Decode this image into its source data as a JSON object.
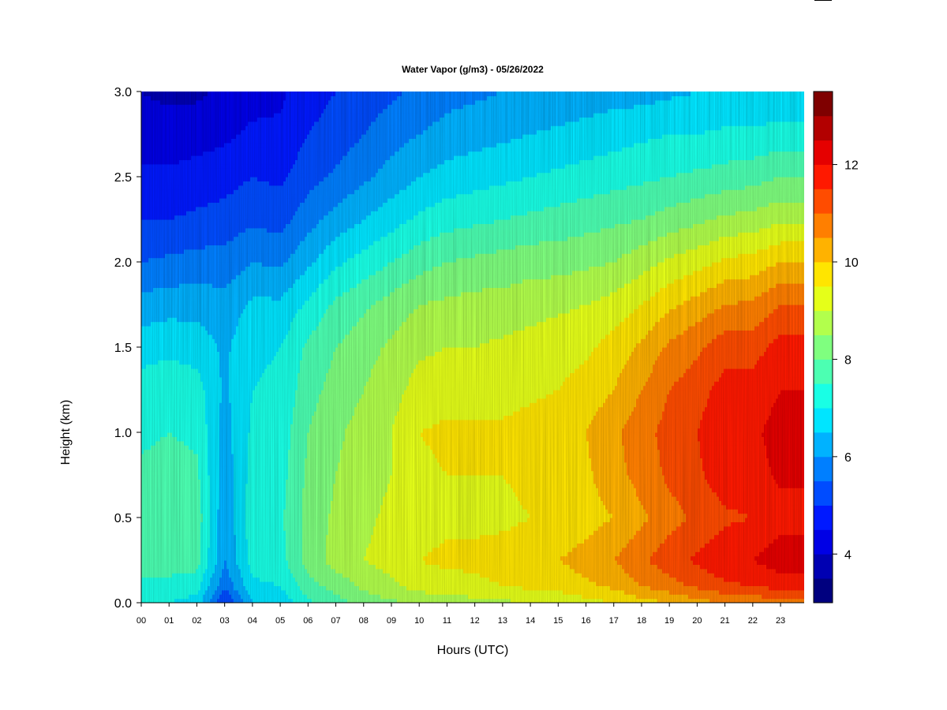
{
  "chart_data": {
    "type": "heatmap",
    "title": "Water Vapor (g/m3) - 05/26/2022",
    "xlabel": "Hours (UTC)",
    "ylabel": "Height (km)",
    "x_ticks": [
      "00",
      "01",
      "02",
      "03",
      "04",
      "05",
      "06",
      "07",
      "08",
      "09",
      "10",
      "11",
      "12",
      "13",
      "14",
      "15",
      "16",
      "17",
      "18",
      "19",
      "20",
      "21",
      "22",
      "23"
    ],
    "xlim": [
      0,
      23.85
    ],
    "y_ticks": [
      "0.0",
      "0.5",
      "1.0",
      "1.5",
      "2.0",
      "2.5",
      "3.0"
    ],
    "ylim": [
      0,
      3.0
    ],
    "colorbar": {
      "ticks": [
        "4",
        "6",
        "8",
        "10",
        "12"
      ],
      "range": [
        3,
        13.5
      ],
      "levels": 21,
      "colors": [
        "#00007f",
        "#0000b2",
        "#0000e5",
        "#0019ff",
        "#004cff",
        "#007fff",
        "#00b2ff",
        "#00e5ff",
        "#19ffe5",
        "#4cffb2",
        "#7fff7f",
        "#b2ff4c",
        "#e5ff19",
        "#ffe500",
        "#ffb200",
        "#ff7f00",
        "#ff4c00",
        "#ff1900",
        "#e50000",
        "#b20000",
        "#7f0000"
      ]
    },
    "heights_km": [
      0.0,
      0.1,
      0.25,
      0.5,
      0.75,
      1.0,
      1.25,
      1.5,
      1.75,
      2.0,
      2.25,
      2.5,
      2.75,
      3.0
    ],
    "hours": [
      0,
      1,
      2,
      3,
      4,
      5,
      6,
      7,
      8,
      9,
      10,
      11,
      12,
      13,
      14,
      15,
      16,
      17,
      18,
      19,
      20,
      21,
      22,
      23
    ],
    "values_g_m3": [
      [
        7.2,
        7.4,
        7.8,
        7.8,
        7.6,
        7.4,
        7.2,
        6.8,
        6.2,
        5.5,
        5.0,
        4.6,
        4.2,
        4.0
      ],
      [
        7.0,
        7.3,
        7.8,
        7.9,
        7.7,
        7.5,
        7.3,
        6.9,
        6.3,
        5.6,
        5.0,
        4.6,
        4.2,
        3.9
      ],
      [
        6.8,
        7.2,
        7.7,
        7.8,
        7.6,
        7.4,
        7.2,
        6.8,
        6.3,
        5.7,
        5.1,
        4.7,
        4.3,
        3.9
      ],
      [
        4.9,
        5.6,
        6.0,
        6.1,
        6.2,
        6.3,
        6.4,
        6.4,
        6.2,
        5.7,
        5.2,
        4.8,
        4.4,
        4.1
      ],
      [
        6.5,
        6.9,
        7.2,
        7.3,
        7.2,
        7.1,
        7.0,
        6.9,
        6.6,
        6.0,
        5.4,
        5.0,
        4.6,
        4.3
      ],
      [
        6.6,
        7.0,
        7.3,
        7.4,
        7.3,
        7.2,
        7.1,
        7.0,
        6.6,
        5.9,
        5.3,
        4.9,
        4.6,
        4.4
      ],
      [
        7.4,
        7.8,
        8.2,
        8.2,
        8.1,
        8.0,
        7.8,
        7.6,
        7.1,
        6.4,
        5.8,
        5.3,
        5.0,
        4.8
      ],
      [
        7.8,
        8.2,
        8.7,
        8.6,
        8.5,
        8.4,
        8.2,
        8.0,
        7.6,
        6.9,
        6.2,
        5.6,
        5.2,
        5.0
      ],
      [
        8.2,
        8.6,
        9.0,
        8.9,
        8.8,
        8.7,
        8.5,
        8.3,
        7.9,
        7.2,
        6.5,
        5.9,
        5.5,
        5.2
      ],
      [
        8.4,
        8.9,
        9.2,
        9.1,
        9.0,
        9.0,
        8.8,
        8.6,
        8.2,
        7.5,
        6.8,
        6.2,
        5.8,
        5.4
      ],
      [
        8.6,
        9.2,
        9.5,
        9.3,
        9.4,
        9.5,
        9.2,
        8.9,
        8.5,
        7.8,
        7.1,
        6.5,
        6.0,
        5.6
      ],
      [
        8.7,
        9.3,
        9.6,
        9.4,
        9.5,
        9.6,
        9.3,
        9.0,
        8.6,
        8.0,
        7.3,
        6.7,
        6.2,
        5.8
      ],
      [
        8.8,
        9.4,
        9.6,
        9.4,
        9.5,
        9.6,
        9.3,
        9.0,
        8.7,
        8.1,
        7.4,
        6.8,
        6.3,
        5.9
      ],
      [
        8.9,
        9.5,
        9.7,
        9.4,
        9.5,
        9.6,
        9.3,
        9.1,
        8.7,
        8.2,
        7.5,
        6.9,
        6.4,
        6.0
      ],
      [
        9.0,
        9.6,
        9.8,
        9.5,
        9.6,
        9.7,
        9.4,
        9.2,
        8.8,
        8.3,
        7.6,
        7.0,
        6.5,
        6.0
      ],
      [
        9.1,
        9.7,
        10.0,
        9.6,
        9.7,
        9.8,
        9.5,
        9.3,
        8.9,
        8.3,
        7.7,
        7.1,
        6.6,
        6.1
      ],
      [
        9.3,
        9.9,
        10.2,
        9.8,
        9.9,
        10.0,
        9.7,
        9.4,
        9.0,
        8.4,
        7.8,
        7.2,
        6.7,
        6.2
      ],
      [
        9.5,
        10.1,
        10.5,
        10.0,
        10.3,
        10.4,
        10.0,
        9.7,
        9.2,
        8.5,
        7.9,
        7.3,
        6.8,
        6.3
      ],
      [
        9.8,
        10.5,
        10.9,
        10.4,
        10.7,
        10.8,
        10.5,
        10.1,
        9.5,
        8.8,
        8.0,
        7.4,
        6.9,
        6.3
      ],
      [
        10.0,
        10.8,
        11.3,
        10.8,
        11.1,
        11.2,
        11.0,
        10.6,
        9.9,
        9.1,
        8.2,
        7.5,
        7.0,
        6.4
      ],
      [
        10.3,
        11.1,
        11.6,
        11.1,
        11.4,
        11.5,
        11.3,
        10.9,
        10.2,
        9.3,
        8.4,
        7.6,
        7.0,
        6.5
      ],
      [
        10.5,
        11.4,
        11.9,
        11.4,
        11.8,
        11.9,
        11.7,
        11.3,
        10.5,
        9.6,
        8.6,
        7.7,
        7.1,
        6.5
      ],
      [
        10.6,
        11.5,
        12.0,
        11.5,
        11.8,
        11.9,
        11.7,
        11.3,
        10.6,
        9.7,
        8.7,
        7.8,
        7.1,
        6.5
      ],
      [
        10.8,
        11.7,
        12.3,
        11.8,
        12.1,
        12.2,
        12.0,
        11.7,
        11.0,
        10.0,
        8.9,
        8.0,
        7.2,
        6.6
      ]
    ]
  }
}
